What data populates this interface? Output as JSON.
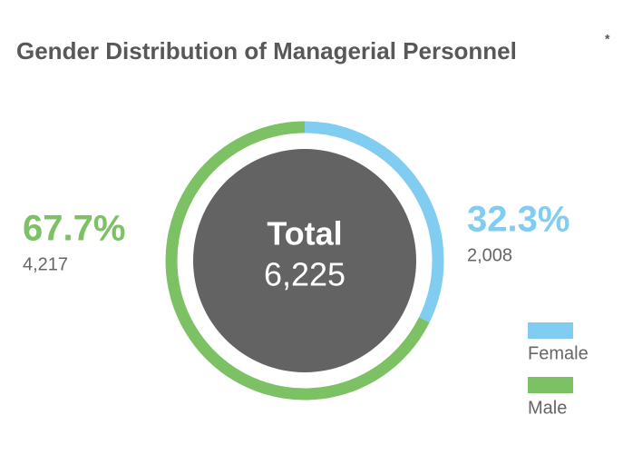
{
  "chart_data": {
    "type": "donut",
    "title": "Gender Distribution of Managerial Personnel",
    "title_note": "*",
    "categories": [
      "Female",
      "Male"
    ],
    "values": [
      32.3,
      67.7
    ],
    "value_labels": [
      "32.3%",
      "67.7%"
    ],
    "counts": [
      2008,
      4217
    ],
    "count_labels": [
      "2,008",
      "4,217"
    ],
    "colors": [
      "#80cdf1",
      "#7cc164"
    ],
    "center_label": "Total",
    "total": {
      "value": 6225,
      "label": "6,225"
    },
    "legend": "bottom-right"
  }
}
